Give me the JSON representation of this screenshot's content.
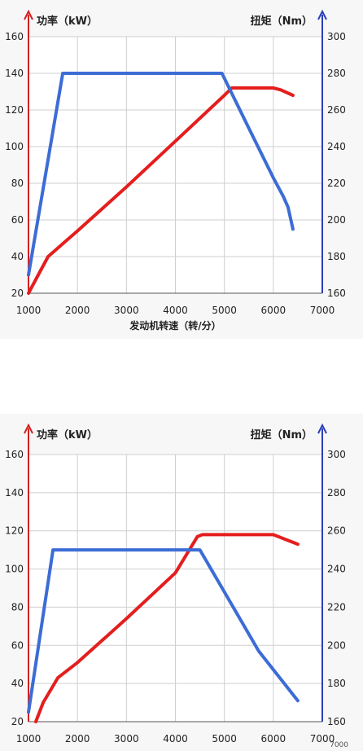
{
  "chart_data": [
    {
      "type": "line",
      "left_axis_label": "功率（kW）",
      "right_axis_label": "扭矩（Nm）",
      "xlabel": "发动机转速（转/分）",
      "x_ticks": [
        1000,
        2000,
        3000,
        4000,
        5000,
        6000,
        7000
      ],
      "left_ticks": [
        20,
        40,
        60,
        80,
        100,
        120,
        140,
        160
      ],
      "right_ticks": [
        160,
        180,
        200,
        220,
        240,
        260,
        280,
        300
      ],
      "xlim": [
        1000,
        7000
      ],
      "ylim_left": [
        20,
        160
      ],
      "ylim_right": [
        160,
        300
      ],
      "grid": true,
      "series": [
        {
          "axis": "left",
          "color": "#e41e1e",
          "points": [
            [
              1000,
              20
            ],
            [
              1200,
              30
            ],
            [
              1400,
              40
            ],
            [
              1700,
              47
            ],
            [
              2000,
              54
            ],
            [
              3000,
              78
            ],
            [
              4000,
              103
            ],
            [
              5000,
              128
            ],
            [
              5150,
              132
            ],
            [
              6000,
              132
            ],
            [
              6150,
              131
            ],
            [
              6400,
              128
            ]
          ]
        },
        {
          "axis": "right",
          "color": "#3c6cd6",
          "points": [
            [
              1000,
              170
            ],
            [
              1700,
              280
            ],
            [
              4950,
              280
            ],
            [
              5500,
              250
            ],
            [
              6000,
              223
            ],
            [
              6200,
              213
            ],
            [
              6300,
              207
            ],
            [
              6400,
              195
            ]
          ]
        }
      ]
    },
    {
      "type": "line",
      "left_axis_label": "功率（kW）",
      "right_axis_label": "扭矩（Nm）",
      "xlabel": "",
      "x_ticks": [
        1000,
        2000,
        3000,
        4000,
        5000,
        6000,
        7000
      ],
      "left_ticks": [
        20,
        40,
        60,
        80,
        100,
        120,
        140,
        160
      ],
      "right_ticks": [
        160,
        180,
        200,
        220,
        240,
        260,
        280,
        300
      ],
      "xlim": [
        1000,
        7000
      ],
      "ylim_left": [
        20,
        160
      ],
      "ylim_right": [
        160,
        300
      ],
      "grid": true,
      "series": [
        {
          "axis": "left",
          "color": "#e41e1e",
          "points": [
            [
              1150,
              20
            ],
            [
              1300,
              30
            ],
            [
              1600,
              43
            ],
            [
              2000,
              51
            ],
            [
              3000,
              74
            ],
            [
              4000,
              98
            ],
            [
              4450,
              117
            ],
            [
              4550,
              118
            ],
            [
              6000,
              118
            ],
            [
              6200,
              116
            ],
            [
              6500,
              113
            ]
          ]
        },
        {
          "axis": "right",
          "color": "#3c6cd6",
          "points": [
            [
              1000,
              165
            ],
            [
              1500,
              250
            ],
            [
              4500,
              250
            ],
            [
              5000,
              228
            ],
            [
              5700,
              197
            ],
            [
              6500,
              171
            ]
          ]
        }
      ]
    }
  ],
  "watermark": "7000"
}
